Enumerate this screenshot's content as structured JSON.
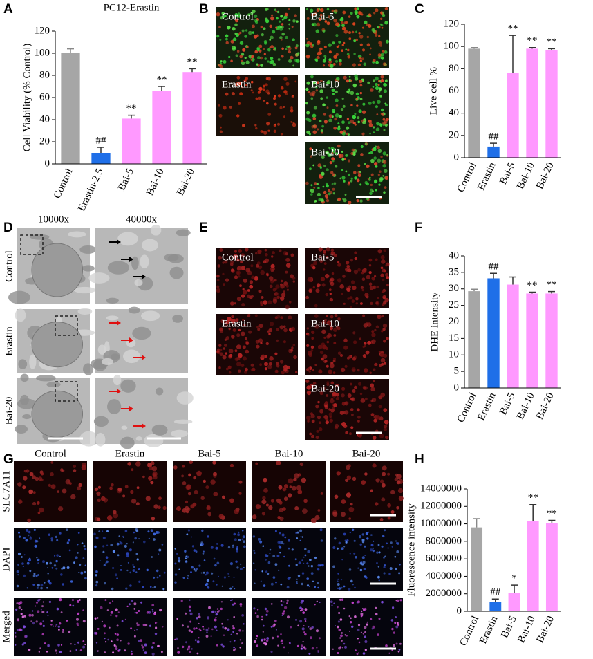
{
  "panel_letters": [
    "A",
    "B",
    "C",
    "D",
    "E",
    "F",
    "G",
    "H"
  ],
  "chart_data": [
    {
      "type": "bar",
      "title": "PC12-Erastin",
      "ylabel": "Cell Viability  (% Control)",
      "categories": [
        "Control",
        "Erastin-2.5",
        "Bai-5",
        "Bai-10",
        "Bai-20"
      ],
      "values": [
        100,
        10,
        41,
        66,
        83
      ],
      "errors": [
        4,
        5,
        3,
        4,
        3
      ],
      "annotations": [
        null,
        "##",
        "**",
        "**",
        "**"
      ],
      "colors": [
        "#a6a6a6",
        "#1f6fe8",
        "#ff99ff",
        "#ff99ff",
        "#ff99ff"
      ],
      "ylim": [
        0,
        120
      ],
      "yticks": [
        0,
        20,
        40,
        60,
        80,
        100,
        120
      ]
    },
    {
      "type": "bar",
      "ylabel": "Live cell %",
      "categories": [
        "Control",
        "Erastin",
        "Bai-5",
        "Bai-10",
        "Bai-20"
      ],
      "values": [
        98,
        10,
        76,
        98,
        97
      ],
      "errors": [
        1,
        3,
        34,
        1,
        1
      ],
      "annotations": [
        null,
        "##",
        "**",
        "**",
        "**"
      ],
      "colors": [
        "#a6a6a6",
        "#1f6fe8",
        "#ff99ff",
        "#ff99ff",
        "#ff99ff"
      ],
      "ylim": [
        0,
        120
      ],
      "yticks": [
        0,
        20,
        40,
        60,
        80,
        100,
        120
      ]
    },
    {
      "type": "bar",
      "ylabel": "DHE intensity",
      "categories": [
        "Control",
        "Erastin",
        "Bai-5",
        "Bai-10",
        "Bai-20"
      ],
      "values": [
        29.3,
        33.2,
        31.3,
        28.6,
        28.6
      ],
      "errors": [
        0.6,
        1.5,
        2.3,
        0.4,
        0.6
      ],
      "annotations": [
        null,
        "##",
        null,
        "**",
        "**"
      ],
      "colors": [
        "#a6a6a6",
        "#1f6fe8",
        "#ff99ff",
        "#ff99ff",
        "#ff99ff"
      ],
      "ylim": [
        0,
        40
      ],
      "yticks": [
        0,
        5,
        10,
        15,
        20,
        25,
        30,
        35,
        40
      ]
    },
    {
      "type": "bar",
      "ylabel": "Fluorescence intensity",
      "categories": [
        "Control",
        "Erastin",
        "Bai-5",
        "Bai-10",
        "Bai-20"
      ],
      "values": [
        9600000,
        1100000,
        2100000,
        10300000,
        10100000
      ],
      "errors": [
        1000000,
        300000,
        900000,
        1900000,
        300000
      ],
      "annotations": [
        null,
        "##",
        "*",
        "**",
        "**"
      ],
      "colors": [
        "#a6a6a6",
        "#1f6fe8",
        "#ff99ff",
        "#ff99ff",
        "#ff99ff"
      ],
      "ylim": [
        0,
        14000000
      ],
      "yticks": [
        0,
        2000000,
        4000000,
        6000000,
        8000000,
        10000000,
        12000000,
        14000000
      ]
    }
  ],
  "panel_b": {
    "labels": [
      "Control",
      "Bai-5",
      "Erastin",
      "Bai-10",
      "Bai-20"
    ]
  },
  "panel_d": {
    "columns": [
      "10000x",
      "40000x"
    ],
    "rows": [
      "Control",
      "Erastin",
      "Bai-20"
    ]
  },
  "panel_e": {
    "labels": [
      "Control",
      "Bai-5",
      "Erastin",
      "Bai-10",
      "Bai-20"
    ]
  },
  "panel_g": {
    "columns": [
      "Control",
      "Erastin",
      "Bai-5",
      "Bai-10",
      "Bai-20"
    ],
    "rows": [
      "SLC7A11",
      "DAPI",
      "Merged"
    ]
  }
}
